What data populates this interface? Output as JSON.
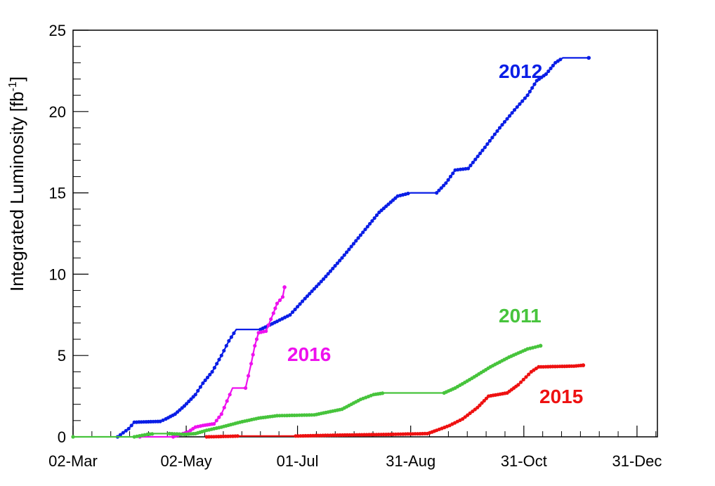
{
  "chart_data": {
    "type": "line",
    "title": "",
    "xlabel": "",
    "ylabel": "Integrated Luminosity [fb",
    "ylabel_sup": "-1",
    "ylabel_close": "]",
    "x_axis": {
      "type": "date",
      "range_days": [
        0,
        315
      ],
      "ticks": [
        {
          "day": 0,
          "label": "02-Mar"
        },
        {
          "day": 61,
          "label": "02-May"
        },
        {
          "day": 121,
          "label": "01-Jul"
        },
        {
          "day": 182,
          "label": "31-Aug"
        },
        {
          "day": 243,
          "label": "31-Oct"
        },
        {
          "day": 304,
          "label": "31-Dec"
        }
      ]
    },
    "ylim": [
      0,
      25
    ],
    "yticks": [
      0,
      5,
      10,
      15,
      20,
      25
    ],
    "grid": false,
    "legend": "none",
    "series": [
      {
        "name": "2012",
        "color": "#0a1ee6",
        "points": [
          [
            24,
            0
          ],
          [
            27,
            0.25
          ],
          [
            30,
            0.5
          ],
          [
            33,
            0.9
          ],
          [
            47,
            0.95
          ],
          [
            50,
            1.1
          ],
          [
            55,
            1.4
          ],
          [
            60,
            1.9
          ],
          [
            66,
            2.6
          ],
          [
            70,
            3.3
          ],
          [
            75,
            4.0
          ],
          [
            80,
            5.0
          ],
          [
            84,
            5.9
          ],
          [
            88,
            6.6
          ],
          [
            101,
            6.6
          ],
          [
            110,
            7.1
          ],
          [
            117,
            7.5
          ],
          [
            125,
            8.5
          ],
          [
            135,
            9.7
          ],
          [
            145,
            11.0
          ],
          [
            155,
            12.4
          ],
          [
            165,
            13.8
          ],
          [
            175,
            14.8
          ],
          [
            182,
            15.0
          ],
          [
            196,
            15.0
          ],
          [
            201,
            15.6
          ],
          [
            206,
            16.4
          ],
          [
            213,
            16.5
          ],
          [
            222,
            17.8
          ],
          [
            230,
            19.0
          ],
          [
            238,
            20.1
          ],
          [
            245,
            21.0
          ],
          [
            250,
            21.9
          ],
          [
            255,
            22.3
          ],
          [
            260,
            23.0
          ],
          [
            264,
            23.3
          ],
          [
            278,
            23.3
          ]
        ]
      },
      {
        "name": "2016",
        "color": "#ee11ee",
        "points": [
          [
            36,
            0
          ],
          [
            54,
            0
          ],
          [
            62,
            0.3
          ],
          [
            66,
            0.6
          ],
          [
            70,
            0.7
          ],
          [
            76,
            0.8
          ],
          [
            80,
            1.4
          ],
          [
            83,
            2.2
          ],
          [
            86,
            3.0
          ],
          [
            93,
            3.0
          ],
          [
            96,
            4.5
          ],
          [
            98,
            5.6
          ],
          [
            100,
            6.4
          ],
          [
            104,
            6.5
          ],
          [
            108,
            7.6
          ],
          [
            110,
            8.2
          ],
          [
            113,
            8.6
          ],
          [
            114,
            9.2
          ]
        ]
      },
      {
        "name": "2011",
        "color": "#47c43c",
        "points": [
          [
            0,
            0
          ],
          [
            33,
            0
          ],
          [
            40,
            0.15
          ],
          [
            44,
            0.2
          ],
          [
            52,
            0.2
          ],
          [
            60,
            0.15
          ],
          [
            66,
            0.2
          ],
          [
            72,
            0.4
          ],
          [
            80,
            0.6
          ],
          [
            90,
            0.9
          ],
          [
            100,
            1.15
          ],
          [
            110,
            1.3
          ],
          [
            130,
            1.35
          ],
          [
            145,
            1.7
          ],
          [
            155,
            2.3
          ],
          [
            162,
            2.6
          ],
          [
            168,
            2.7
          ],
          [
            200,
            2.7
          ],
          [
            206,
            3.0
          ],
          [
            215,
            3.6
          ],
          [
            225,
            4.3
          ],
          [
            235,
            4.9
          ],
          [
            245,
            5.4
          ],
          [
            252,
            5.6
          ]
        ]
      },
      {
        "name": "2015",
        "color": "#ee1111",
        "points": [
          [
            72,
            0
          ],
          [
            90,
            0.05
          ],
          [
            120,
            0.05
          ],
          [
            140,
            0.1
          ],
          [
            170,
            0.15
          ],
          [
            191,
            0.2
          ],
          [
            196,
            0.4
          ],
          [
            203,
            0.7
          ],
          [
            210,
            1.1
          ],
          [
            218,
            1.8
          ],
          [
            224,
            2.5
          ],
          [
            234,
            2.7
          ],
          [
            240,
            3.2
          ],
          [
            247,
            4.0
          ],
          [
            251,
            4.3
          ],
          [
            270,
            4.35
          ],
          [
            275,
            4.4
          ]
        ]
      }
    ],
    "annotations": [
      {
        "text": "2012",
        "color": "#0a1ee6"
      },
      {
        "text": "2016",
        "color": "#ee11ee"
      },
      {
        "text": "2011",
        "color": "#47c43c"
      },
      {
        "text": "2015",
        "color": "#ee1111"
      }
    ]
  }
}
